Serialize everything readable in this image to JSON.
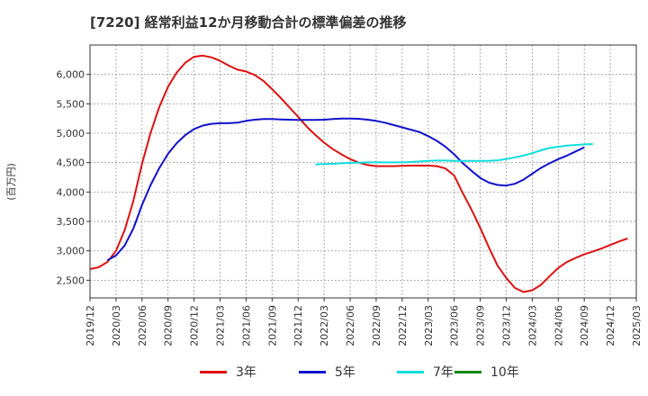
{
  "chart_data": {
    "type": "line",
    "title": "[7220]  経常利益12か月移動合計の標準偏差の推移",
    "ylabel": "(百万円)",
    "xlabel": "",
    "ylim": [
      2200,
      6500
    ],
    "y_ticks": [
      2500,
      3000,
      3500,
      4000,
      4500,
      5000,
      5500,
      6000
    ],
    "y_tick_labels": [
      "2,500",
      "3,000",
      "3,500",
      "4,000",
      "4,500",
      "5,000",
      "5,500",
      "6,000"
    ],
    "x_tick_labels": [
      "2019/12",
      "2020/03",
      "2020/06",
      "2020/09",
      "2020/12",
      "2021/03",
      "2021/06",
      "2021/09",
      "2021/12",
      "2022/03",
      "2022/06",
      "2022/09",
      "2022/12",
      "2023/03",
      "2023/06",
      "2023/09",
      "2023/12",
      "2024/03",
      "2024/06",
      "2024/09",
      "2024/12",
      "2025/03"
    ],
    "x_start": "2019/12",
    "grid": true,
    "legend_position": "bottom",
    "series": [
      {
        "name": "3年",
        "color": "#dd1111",
        "start": "2019/12",
        "values": [
          2690,
          2720,
          2810,
          3000,
          3350,
          3850,
          4480,
          5010,
          5450,
          5790,
          6030,
          6200,
          6300,
          6320,
          6290,
          6230,
          6150,
          6080,
          6050,
          5990,
          5890,
          5750,
          5600,
          5440,
          5280,
          5110,
          4970,
          4840,
          4730,
          4640,
          4560,
          4500,
          4460,
          4440,
          4440,
          4440,
          4445,
          4450,
          4450,
          4450,
          4440,
          4400,
          4280,
          3980,
          3700,
          3390,
          3060,
          2750,
          2540,
          2370,
          2300,
          2330,
          2420,
          2570,
          2710,
          2810,
          2880,
          2940,
          2990,
          3040,
          3100,
          3160,
          3210
        ]
      },
      {
        "name": "5年",
        "color": "#1111cc",
        "start": "2020/02",
        "values": [
          2840,
          2920,
          3090,
          3380,
          3780,
          4120,
          4410,
          4650,
          4830,
          4970,
          5070,
          5130,
          5160,
          5170,
          5170,
          5180,
          5210,
          5230,
          5240,
          5240,
          5235,
          5230,
          5225,
          5225,
          5225,
          5230,
          5240,
          5250,
          5250,
          5245,
          5230,
          5210,
          5180,
          5140,
          5100,
          5060,
          5020,
          4950,
          4870,
          4770,
          4640,
          4490,
          4360,
          4240,
          4160,
          4120,
          4110,
          4140,
          4210,
          4310,
          4410,
          4490,
          4560,
          4620,
          4690,
          4760
        ]
      },
      {
        "name": "7年",
        "color": "#11dddd",
        "start": "2022/02",
        "values": [
          4470,
          4475,
          4480,
          4490,
          4495,
          4500,
          4505,
          4505,
          4505,
          4505,
          4505,
          4510,
          4520,
          4530,
          4535,
          4535,
          4530,
          4530,
          4530,
          4530,
          4530,
          4540,
          4560,
          4590,
          4620,
          4660,
          4710,
          4750,
          4770,
          4790,
          4800,
          4810,
          4815
        ]
      },
      {
        "name": "10年",
        "color": "#118811",
        "start": "2019/12",
        "values": []
      }
    ]
  }
}
